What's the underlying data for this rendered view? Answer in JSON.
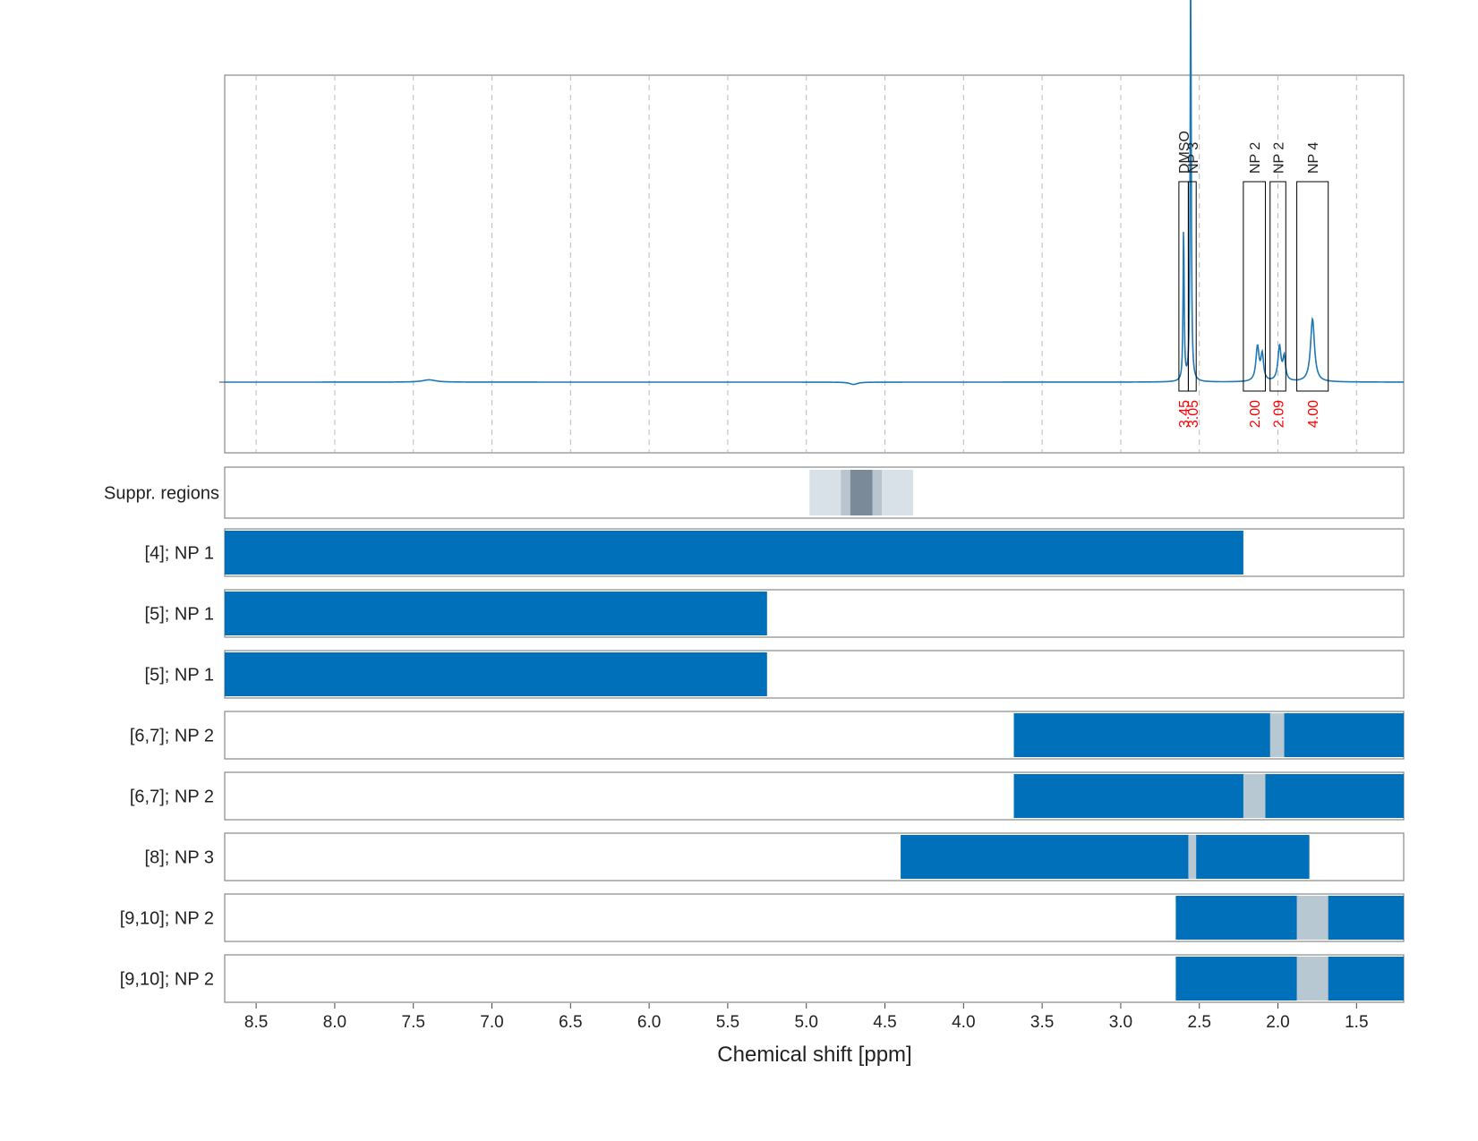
{
  "chart_data": {
    "type": "line",
    "xlabel": "Chemical shift [ppm]",
    "xlim": [
      8.7,
      1.2
    ],
    "x_ticks": [
      "8.5",
      "8.0",
      "7.5",
      "7.0",
      "6.5",
      "6.0",
      "5.5",
      "5.0",
      "4.5",
      "4.0",
      "3.5",
      "3.0",
      "2.5",
      "2.0",
      "1.5"
    ],
    "colors": {
      "spectrum": "#1f77b4",
      "range_bar": "#0070bb",
      "gap": "#b8c8d2",
      "integral": "#ff0000",
      "suppr_light": "#d8e1e8",
      "suppr_mid": "#b9c5ce",
      "suppr_dark": "#7a8a98",
      "grid": "#bbbbbb"
    },
    "spectrum": {
      "baseline": 0.0,
      "ylim": [
        -0.3,
        1.0
      ],
      "peaks": [
        {
          "x": 2.6,
          "height": 0.27,
          "width": 0.004
        },
        {
          "x": 2.555,
          "height": 0.74,
          "width": 0.004
        },
        {
          "x": 2.13,
          "height": 0.06,
          "width": 0.012
        },
        {
          "x": 2.1,
          "height": 0.045,
          "width": 0.01
        },
        {
          "x": 1.99,
          "height": 0.06,
          "width": 0.012
        },
        {
          "x": 1.96,
          "height": 0.04,
          "width": 0.01
        },
        {
          "x": 1.78,
          "height": 0.11,
          "width": 0.015
        },
        {
          "x": 7.4,
          "height": 0.004,
          "width": 0.05
        },
        {
          "x": 4.7,
          "height": -0.004,
          "width": 0.03
        }
      ]
    },
    "annotations": [
      {
        "label": "DMSO",
        "x0": 2.63,
        "x1": 2.57,
        "integral": "3.45"
      },
      {
        "label": "NP 3",
        "x0": 2.57,
        "x1": 2.52,
        "integral": "3.05"
      },
      {
        "label": "NP 2",
        "x0": 2.22,
        "x1": 2.08,
        "integral": "2.00"
      },
      {
        "label": "NP 2",
        "x0": 2.05,
        "x1": 1.95,
        "integral": "2.09"
      },
      {
        "label": "NP 4",
        "x0": 1.88,
        "x1": 1.68,
        "integral": "4.00"
      }
    ],
    "suppression": {
      "label": "Suppr. regions",
      "regions": [
        {
          "x0": 4.98,
          "x1": 4.32,
          "shade": "light"
        },
        {
          "x0": 4.78,
          "x1": 4.52,
          "shade": "mid"
        },
        {
          "x0": 4.72,
          "x1": 4.58,
          "shade": "dark"
        }
      ]
    },
    "ranges": [
      {
        "label": "[4]; NP 1",
        "x0": 8.7,
        "x1": 2.22,
        "gaps": []
      },
      {
        "label": "[5]; NP 1",
        "x0": 8.7,
        "x1": 5.25,
        "gaps": []
      },
      {
        "label": "[5]; NP 1",
        "x0": 8.7,
        "x1": 5.25,
        "gaps": []
      },
      {
        "label": "[6,7]; NP 2",
        "x0": 3.68,
        "x1": 1.2,
        "gaps": [
          {
            "x0": 2.05,
            "x1": 1.96
          }
        ]
      },
      {
        "label": "[6,7]; NP 2",
        "x0": 3.68,
        "x1": 1.2,
        "gaps": [
          {
            "x0": 2.22,
            "x1": 2.08
          }
        ]
      },
      {
        "label": "[8]; NP 3",
        "x0": 4.4,
        "x1": 1.8,
        "gaps": [
          {
            "x0": 2.57,
            "x1": 2.52
          }
        ]
      },
      {
        "label": "[9,10]; NP 2",
        "x0": 2.65,
        "x1": 1.2,
        "gaps": [
          {
            "x0": 1.88,
            "x1": 1.68
          }
        ]
      },
      {
        "label": "[9,10]; NP 2",
        "x0": 2.65,
        "x1": 1.2,
        "gaps": [
          {
            "x0": 1.88,
            "x1": 1.68
          }
        ]
      }
    ]
  }
}
